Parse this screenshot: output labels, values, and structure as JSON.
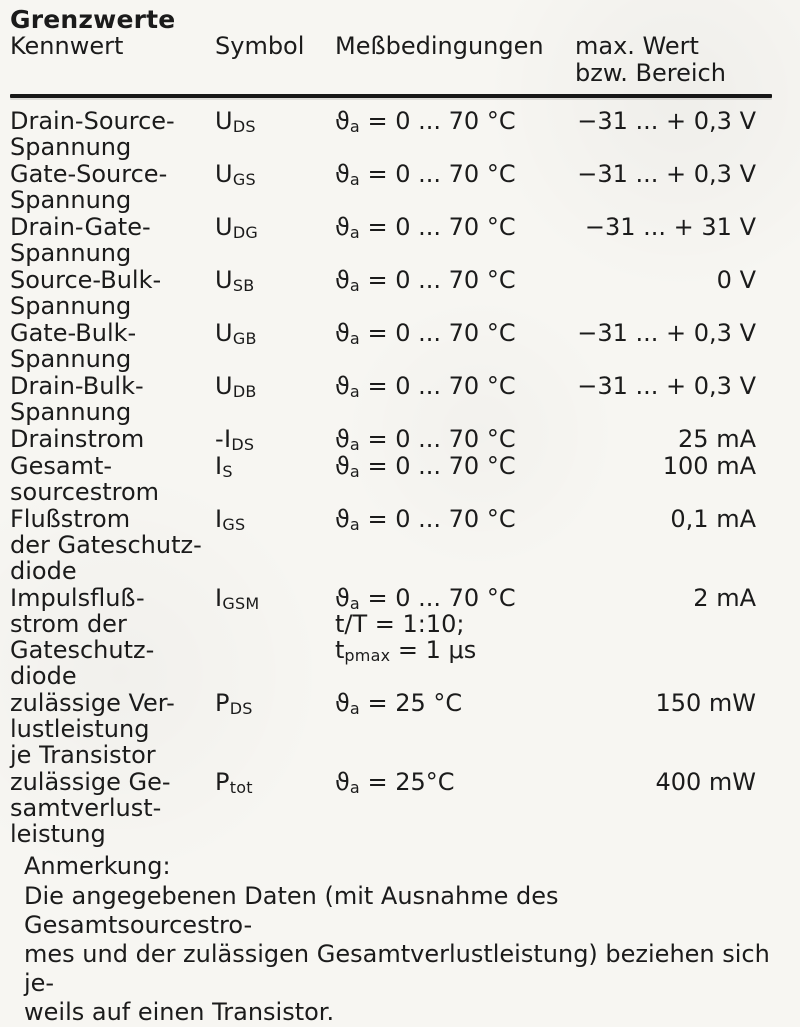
{
  "page": {
    "title": "Grenzwerte",
    "columns": {
      "kennwert": "Kennwert",
      "symbol": "Symbol",
      "conditions": "Meßbedingungen",
      "max_line1": "max. Wert",
      "max_line2": "bzw. Bereich"
    },
    "note": {
      "label": "Anmerkung:",
      "text": "Die angegebenen Daten (mit Ausnahme des Gesamtsourcestro-\nmes und der zulässigen Gesamtverlustleistung) beziehen sich je-\nweils auf einen Transistor."
    }
  },
  "colors": {
    "ink": "#1b1b1b",
    "paper": "#f7f6f2"
  },
  "table": {
    "rows": [
      {
        "kennwert": "Drain-Source-\nSpannung",
        "symbol": "U_{DS}",
        "conditions": "ϑ_{a} = 0 ... 70 °C",
        "value": "−31 ... + 0,3 V"
      },
      {
        "kennwert": "Gate-Source-\nSpannung",
        "symbol": "U_{GS}",
        "conditions": "ϑ_{a} = 0 ... 70 °C",
        "value": "−31 ... + 0,3 V"
      },
      {
        "kennwert": "Drain-Gate-\nSpannung",
        "symbol": "U_{DG}",
        "conditions": "ϑ_{a} = 0 ... 70 °C",
        "value": "−31 ... + 31 V"
      },
      {
        "kennwert": "Source-Bulk-\nSpannung",
        "symbol": "U_{SB}",
        "conditions": "ϑ_{a} = 0 ... 70 °C",
        "value": "0 V"
      },
      {
        "kennwert": "Gate-Bulk-\nSpannung",
        "symbol": "U_{GB}",
        "conditions": "ϑ_{a} = 0 ... 70 °C",
        "value": "−31 ... + 0,3 V"
      },
      {
        "kennwert": "Drain-Bulk-\nSpannung",
        "symbol": "U_{DB}",
        "conditions": "ϑ_{a} = 0 ... 70 °C",
        "value": "−31 ... + 0,3 V"
      },
      {
        "kennwert": "Drainstrom",
        "symbol": "-I_{DS}",
        "conditions": "ϑ_{a} = 0 ... 70 °C",
        "value": "25 mA"
      },
      {
        "kennwert": "Gesamt-\nsourcestrom",
        "symbol": "I_{S}",
        "conditions": "ϑ_{a} = 0 ... 70 °C",
        "value": "100 mA"
      },
      {
        "kennwert": "Flußstrom\nder Gateschutz-\ndiode",
        "symbol": "I_{GS}",
        "conditions": "ϑ_{a} = 0 ... 70 °C",
        "value": "0,1 mA"
      },
      {
        "kennwert": "Impulsfluß-\nstrom der\nGateschutz-\ndiode",
        "symbol": "I_{GSM}",
        "conditions": "ϑ_{a} = 0 ... 70 °C\nt/T = 1:10;\nt_{pmax} = 1 μs",
        "value": "2 mA"
      },
      {
        "kennwert": "zulässige Ver-\nlustleistung\nje Transistor",
        "symbol": "P_{DS}",
        "conditions": "ϑ_{a} = 25 °C",
        "value": "150 mW"
      },
      {
        "kennwert": "zulässige Ge-\nsamtverlust-\nleistung",
        "symbol": "P_{tot}",
        "conditions": "ϑ_{a} = 25°C",
        "value": "400 mW"
      }
    ]
  }
}
